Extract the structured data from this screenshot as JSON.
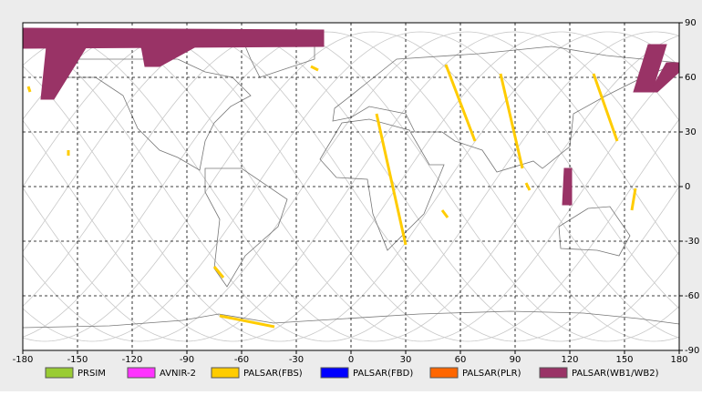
{
  "chart_data": {
    "type": "map",
    "xlim": [
      -180,
      180
    ],
    "ylim": [
      -90,
      90
    ],
    "xticks": [
      -180,
      -150,
      -120,
      -90,
      -60,
      -30,
      0,
      30,
      60,
      90,
      120,
      150,
      180
    ],
    "yticks": [
      -90,
      -60,
      -30,
      0,
      30,
      60,
      90
    ],
    "grid": true,
    "series": [
      {
        "name": "PRSIM",
        "color": "#99cc33",
        "values": []
      },
      {
        "name": "AVNIR-2",
        "color": "#ff33ff",
        "values": []
      },
      {
        "name": "PALSAR(FBS)",
        "color": "#ffcc00",
        "values": [
          [
            [
              -155,
              20
            ],
            [
              -155,
              17
            ]
          ],
          [
            [
              -177,
              55
            ],
            [
              -176,
              52
            ]
          ],
          [
            [
              -75,
              -44
            ],
            [
              -70,
              -50
            ]
          ],
          [
            [
              -72,
              -71
            ],
            [
              -42,
              -77
            ]
          ],
          [
            [
              -22,
              66
            ],
            [
              -18,
              64
            ]
          ],
          [
            [
              14,
              40
            ],
            [
              30,
              -32
            ]
          ],
          [
            [
              53,
              -17
            ],
            [
              50,
              -13
            ]
          ],
          [
            [
              52,
              67
            ],
            [
              68,
              25
            ]
          ],
          [
            [
              82,
              62
            ],
            [
              94,
              10
            ]
          ],
          [
            [
              96,
              2
            ],
            [
              98,
              -2
            ]
          ],
          [
            [
              133,
              62
            ],
            [
              146,
              25
            ]
          ],
          [
            [
              156,
              -1
            ],
            [
              154,
              -13
            ]
          ]
        ]
      },
      {
        "name": "PALSAR(FBD)",
        "color": "#0000ff",
        "values": []
      },
      {
        "name": "PALSAR(PLR)",
        "color": "#ff6600",
        "values": []
      },
      {
        "name": "PALSAR(WB1/WB2)",
        "color": "#993366",
        "values": [
          [
            [
              -180,
              87
            ],
            [
              -15,
              86
            ],
            [
              -15,
              77
            ],
            [
              -180,
              76
            ]
          ],
          [
            [
              -167,
              77
            ],
            [
              -145,
              77
            ],
            [
              -163,
              48
            ],
            [
              -170,
              48
            ]
          ],
          [
            [
              -115,
              77
            ],
            [
              -85,
              77
            ],
            [
              -105,
              66
            ],
            [
              -113,
              66
            ]
          ],
          [
            [
              117,
              10
            ],
            [
              121,
              10
            ],
            [
              121,
              -10
            ],
            [
              116,
              -10
            ]
          ],
          [
            [
              163,
              78
            ],
            [
              173,
              78
            ],
            [
              165,
              52
            ],
            [
              155,
              52
            ]
          ],
          [
            [
              173,
              68
            ],
            [
              180,
              68
            ],
            [
              180,
              63
            ],
            [
              168,
              52
            ],
            [
              164,
              52
            ]
          ]
        ]
      }
    ]
  }
}
